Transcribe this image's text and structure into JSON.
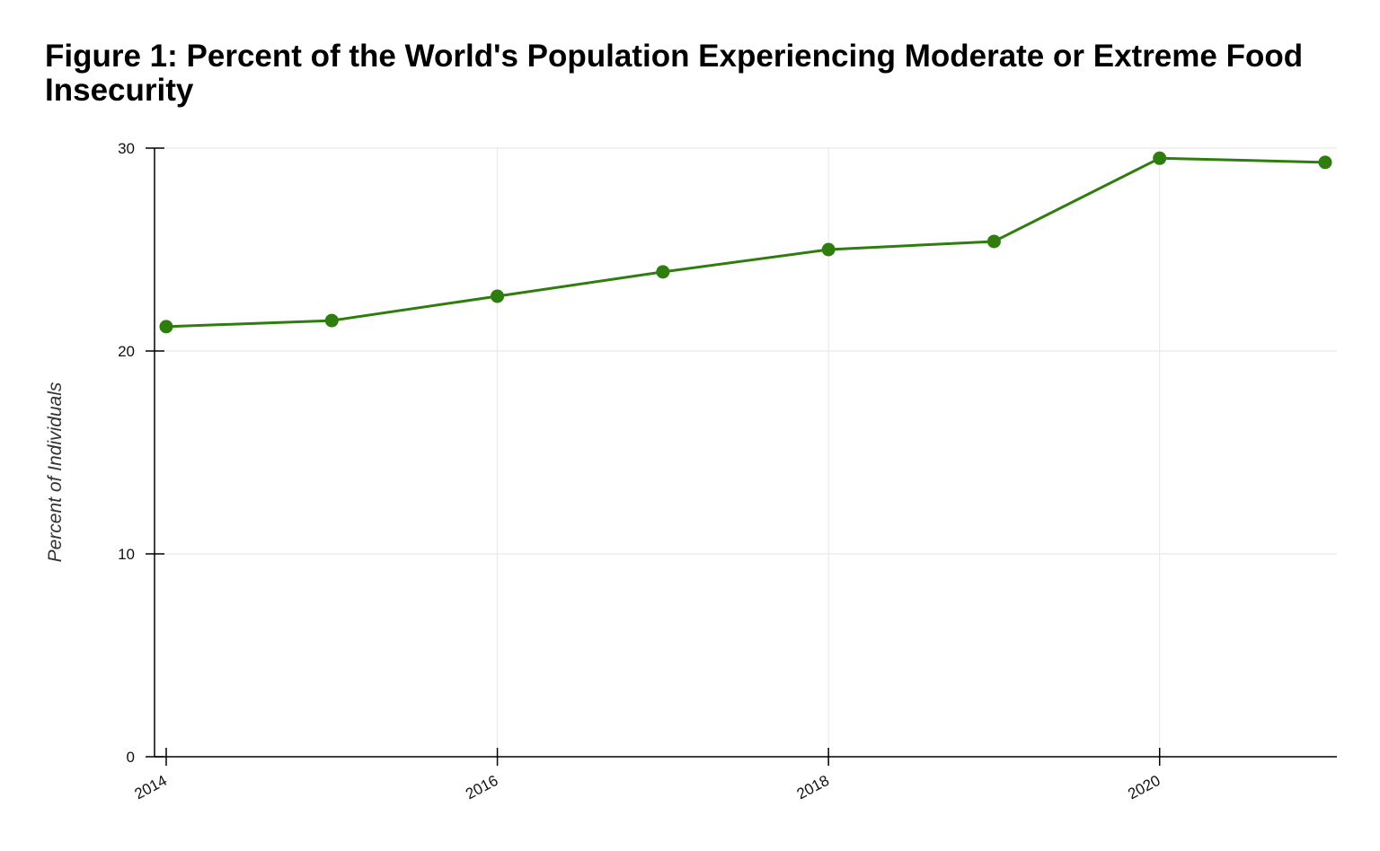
{
  "chart_data": {
    "type": "line",
    "title": "Figure 1: Percent of the World's Population Experiencing Moderate or Extreme Food Insecurity",
    "xlabel": "",
    "ylabel": "Percent of Individuals",
    "x": [
      2014,
      2015,
      2016,
      2017,
      2018,
      2019,
      2020,
      2021
    ],
    "series": [
      {
        "values": [
          21.2,
          21.5,
          22.7,
          23.9,
          25.0,
          25.4,
          29.5,
          29.3
        ],
        "color": "#2e7d0e"
      }
    ],
    "xlim": [
      2014,
      2021
    ],
    "ylim": [
      0,
      30
    ],
    "x_ticks": [
      2014,
      2016,
      2018,
      2020
    ],
    "y_ticks": [
      0,
      10,
      20,
      30
    ],
    "grid": true,
    "legend": "none"
  }
}
